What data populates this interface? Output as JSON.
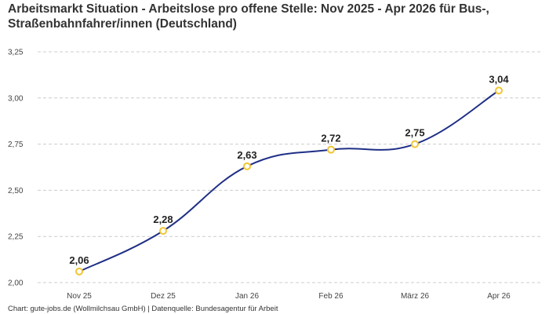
{
  "title_line1": "Arbeitsmarkt Situation - Arbeitslose pro offene Stelle: Nov 2025 - Apr 2026 für Bus-,",
  "title_line2": "Straßenbahnfahrer/innen (Deutschland)",
  "footer": "Chart: gute-jobs.de (Wollmilchsau GmbH) | Datenquelle: Bundesagentur für Arbeit",
  "colors": {
    "line": "#1f2f86",
    "marker_stroke": "#f2c531",
    "marker_fill": "#ffffff",
    "grid": "#cccccc"
  },
  "chart_data": {
    "type": "line",
    "categories": [
      "Nov 25",
      "Dez 25",
      "Jan 26",
      "Feb 26",
      "März 26",
      "Apr 26"
    ],
    "values": [
      2.06,
      2.28,
      2.63,
      2.72,
      2.75,
      3.04
    ],
    "value_labels": [
      "2,06",
      "2,28",
      "2,63",
      "2,72",
      "2,75",
      "3,04"
    ],
    "y_ticks": [
      2.0,
      2.25,
      2.5,
      2.75,
      3.0,
      3.25
    ],
    "y_tick_labels": [
      "2,00",
      "2,25",
      "2,50",
      "2,75",
      "3,00",
      "3,25"
    ],
    "ylim": [
      2.0,
      3.25
    ],
    "grid": true,
    "xlabel": "",
    "ylabel": ""
  }
}
